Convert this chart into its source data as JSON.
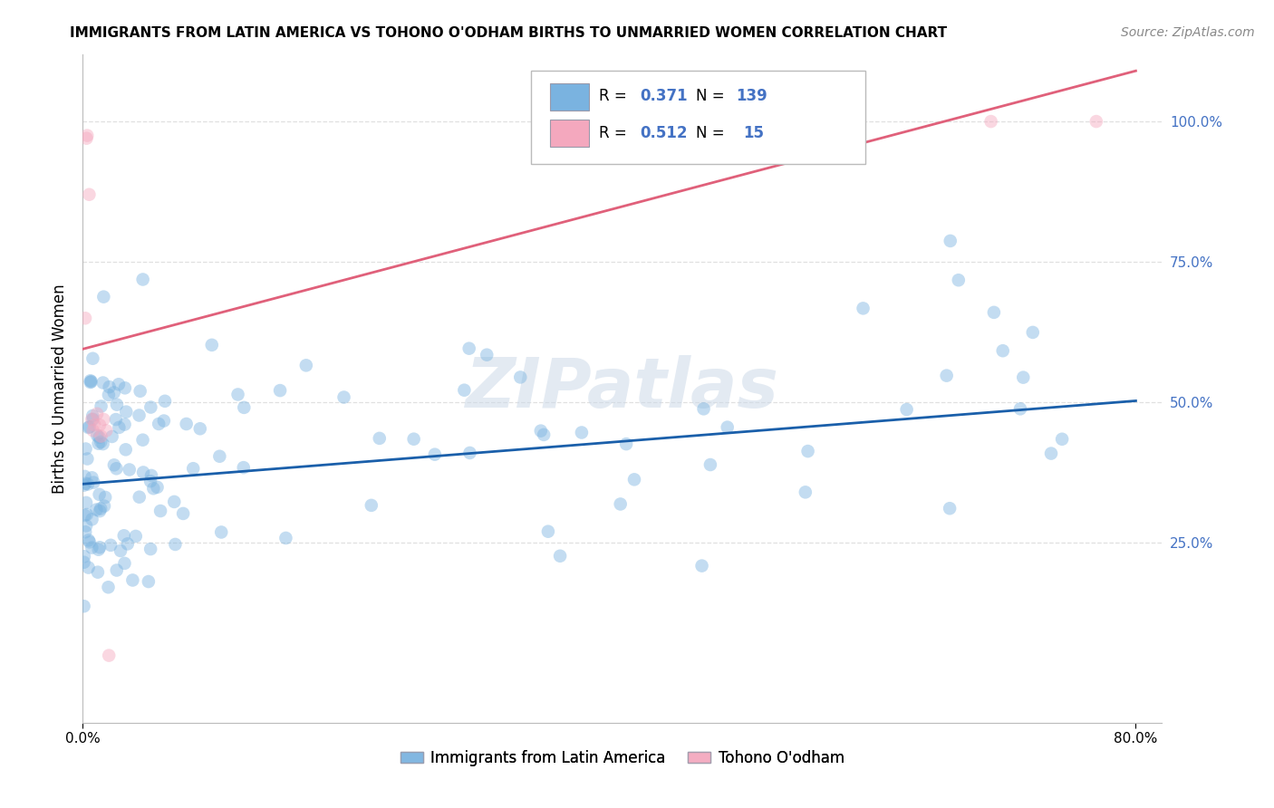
{
  "title": "IMMIGRANTS FROM LATIN AMERICA VS TOHONO O'ODHAM BIRTHS TO UNMARRIED WOMEN CORRELATION CHART",
  "source": "Source: ZipAtlas.com",
  "ylabel": "Births to Unmarried Women",
  "xlim": [
    0.0,
    0.82
  ],
  "ylim": [
    -0.07,
    1.12
  ],
  "background_color": "#ffffff",
  "grid_color": "#e0e0e0",
  "blue_color": "#7ab3e0",
  "pink_color": "#f4a8be",
  "blue_line_color": "#1a5faa",
  "pink_line_color": "#e0607a",
  "blue_R": "0.371",
  "blue_N": "139",
  "pink_R": "0.512",
  "pink_N": "15",
  "scatter_alpha": 0.45,
  "scatter_size": 110,
  "blue_line_x": [
    0.0,
    0.8
  ],
  "blue_line_y": [
    0.355,
    0.503
  ],
  "pink_line_x": [
    0.0,
    0.8
  ],
  "pink_line_y": [
    0.595,
    1.09
  ],
  "blue_seed": 42,
  "pink_x": [
    0.002,
    0.003,
    0.0035,
    0.005,
    0.007,
    0.008,
    0.009,
    0.011,
    0.013,
    0.014,
    0.016,
    0.018,
    0.02,
    0.69,
    0.77
  ],
  "pink_y": [
    0.65,
    0.97,
    0.975,
    0.87,
    0.47,
    0.45,
    0.46,
    0.48,
    0.46,
    0.44,
    0.47,
    0.45,
    0.05,
    1.0,
    1.0
  ]
}
